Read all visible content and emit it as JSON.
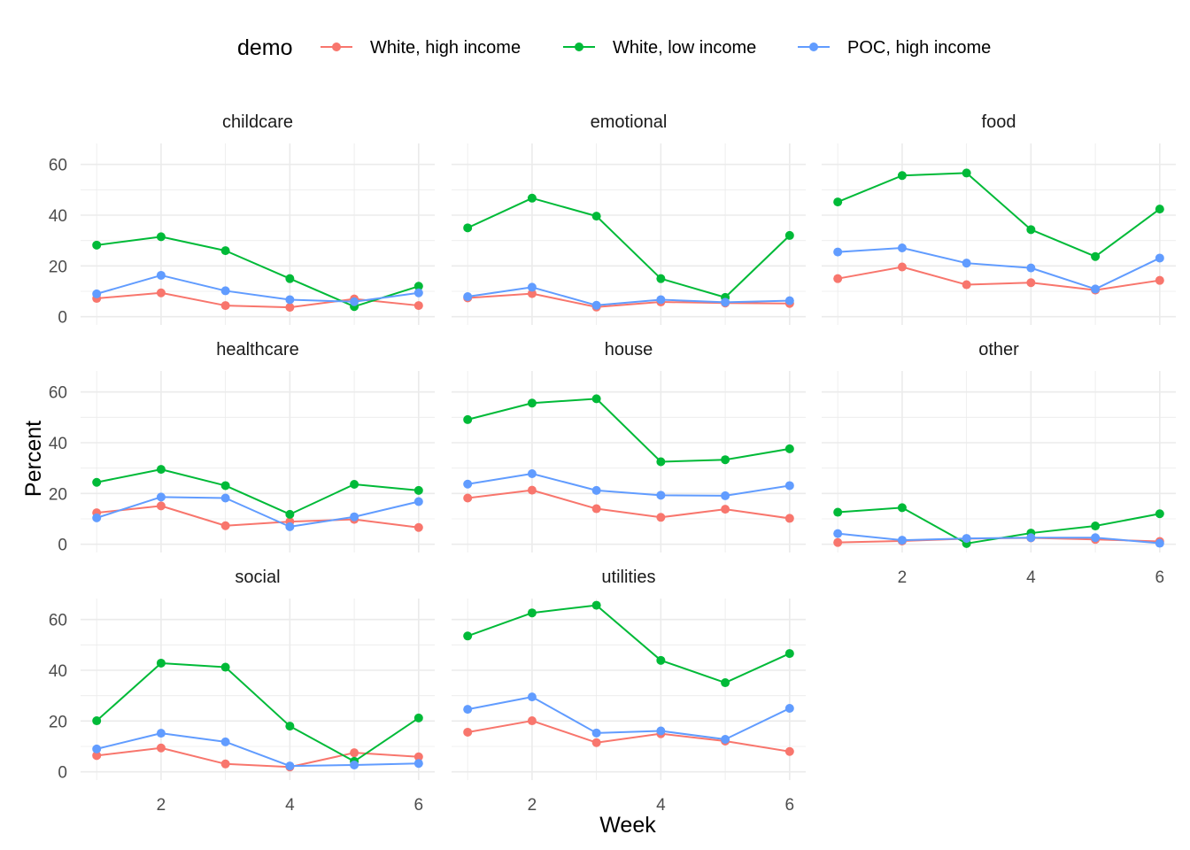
{
  "chart_data": {
    "type": "line",
    "xlabel": "Week",
    "ylabel": "Percent",
    "xlim": [
      1,
      6
    ],
    "ylim": [
      0,
      65
    ],
    "x_ticks": [
      2,
      4,
      6
    ],
    "y_ticks": [
      0,
      20,
      40,
      60
    ],
    "grid": true,
    "legend": {
      "title": "demo",
      "position": "top"
    },
    "series_defs": [
      {
        "name": "White, high income",
        "color": "#F8766D"
      },
      {
        "name": "White, low income",
        "color": "#00BA38"
      },
      {
        "name": "POC, high income",
        "color": "#619CFF"
      }
    ],
    "x": [
      1,
      2,
      3,
      4,
      5,
      6
    ],
    "panels": [
      {
        "title": "childcare",
        "series": [
          {
            "name": "White, high income",
            "values": [
              7.2,
              9.4,
              4.4,
              3.7,
              7.0,
              4.4
            ]
          },
          {
            "name": "White, low income",
            "values": [
              28.2,
              31.5,
              26.0,
              15.0,
              4.0,
              12.0
            ]
          },
          {
            "name": "POC, high income",
            "values": [
              9.0,
              16.3,
              10.2,
              6.7,
              5.9,
              9.4
            ]
          }
        ]
      },
      {
        "title": "emotional",
        "series": [
          {
            "name": "White, high income",
            "values": [
              7.4,
              9.1,
              3.8,
              5.8,
              5.4,
              5.2
            ]
          },
          {
            "name": "White, low income",
            "values": [
              35.0,
              46.7,
              39.6,
              15.0,
              7.6,
              32.0
            ]
          },
          {
            "name": "POC, high income",
            "values": [
              7.9,
              11.6,
              4.5,
              6.7,
              5.7,
              6.3
            ]
          }
        ]
      },
      {
        "title": "food",
        "series": [
          {
            "name": "White, high income",
            "values": [
              15.0,
              19.6,
              12.6,
              13.4,
              10.5,
              14.3
            ]
          },
          {
            "name": "White, low income",
            "values": [
              45.2,
              55.6,
              56.6,
              34.3,
              23.7,
              42.4
            ]
          },
          {
            "name": "POC, high income",
            "values": [
              25.5,
              27.1,
              21.1,
              19.2,
              10.9,
              23.1
            ]
          }
        ]
      },
      {
        "title": "healthcare",
        "series": [
          {
            "name": "White, high income",
            "values": [
              12.4,
              15.1,
              7.3,
              8.9,
              9.8,
              6.6
            ]
          },
          {
            "name": "White, low income",
            "values": [
              24.4,
              29.5,
              23.1,
              11.8,
              23.6,
              21.2
            ]
          },
          {
            "name": "POC, high income",
            "values": [
              10.4,
              18.6,
              18.2,
              6.9,
              10.8,
              16.8
            ]
          }
        ]
      },
      {
        "title": "house",
        "series": [
          {
            "name": "White, high income",
            "values": [
              18.2,
              21.3,
              14.0,
              10.6,
              13.8,
              10.2
            ]
          },
          {
            "name": "White, low income",
            "values": [
              49.1,
              55.6,
              57.3,
              32.5,
              33.3,
              37.6
            ]
          },
          {
            "name": "POC, high income",
            "values": [
              23.7,
              27.8,
              21.2,
              19.3,
              19.1,
              23.1
            ]
          }
        ]
      },
      {
        "title": "other",
        "series": [
          {
            "name": "White, high income",
            "values": [
              0.7,
              1.3,
              2.2,
              2.5,
              1.9,
              1.1
            ]
          },
          {
            "name": "White, low income",
            "values": [
              12.6,
              14.4,
              0.3,
              4.4,
              7.2,
              12.0
            ]
          },
          {
            "name": "POC, high income",
            "values": [
              4.2,
              1.6,
              2.3,
              2.6,
              2.6,
              0.4
            ]
          }
        ]
      },
      {
        "title": "social",
        "series": [
          {
            "name": "White, high income",
            "values": [
              6.4,
              9.4,
              3.1,
              1.9,
              7.5,
              5.9
            ]
          },
          {
            "name": "White, low income",
            "values": [
              20.1,
              42.8,
              41.2,
              18.0,
              4.1,
              21.2
            ]
          },
          {
            "name": "POC, high income",
            "values": [
              9.0,
              15.2,
              11.8,
              2.3,
              2.7,
              3.3
            ]
          }
        ]
      },
      {
        "title": "utilities",
        "series": [
          {
            "name": "White, high income",
            "values": [
              15.6,
              20.1,
              11.5,
              15.0,
              12.1,
              8.0
            ]
          },
          {
            "name": "White, low income",
            "values": [
              53.5,
              62.6,
              65.6,
              43.9,
              35.1,
              46.6
            ]
          },
          {
            "name": "POC, high income",
            "values": [
              24.6,
              29.5,
              15.3,
              16.1,
              12.8,
              25.0
            ]
          }
        ]
      }
    ]
  }
}
